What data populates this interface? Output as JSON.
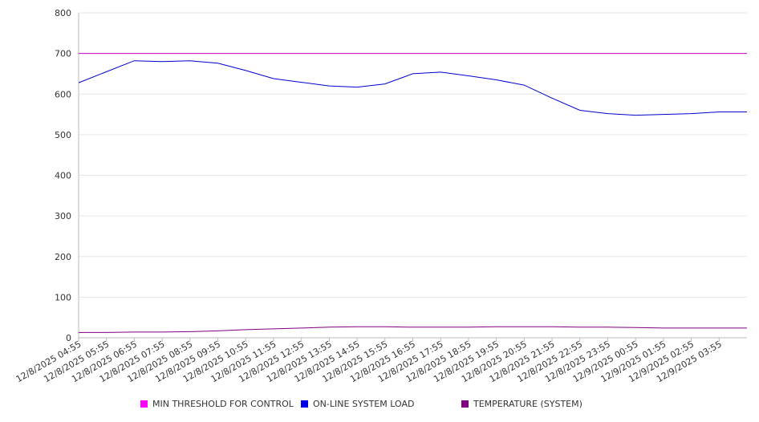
{
  "chart_data": {
    "type": "line",
    "x": [
      "12/8/2025 04:55",
      "12/8/2025 05:55",
      "12/8/2025 06:55",
      "12/8/2025 07:55",
      "12/8/2025 08:55",
      "12/8/2025 09:55",
      "12/8/2025 10:55",
      "12/8/2025 11:55",
      "12/8/2025 12:55",
      "12/8/2025 13:55",
      "12/8/2025 14:55",
      "12/8/2025 15:55",
      "12/8/2025 16:55",
      "12/8/2025 17:55",
      "12/8/2025 18:55",
      "12/8/2025 19:55",
      "12/8/2025 20:55",
      "12/8/2025 21:55",
      "12/8/2025 22:55",
      "12/8/2025 23:55",
      "12/9/2025 00:55",
      "12/9/2025 01:55",
      "12/9/2025 02:55",
      "12/9/2025 03:55"
    ],
    "x_tick_labels": [
      "12/8/2025 04:55",
      "12/8/2025 05:55",
      "12/8/2025 06:55",
      "12/8/2025 07:55",
      "12/8/2025 08:55",
      "12/8/2025 09:55",
      "12/8/2025 10:55",
      "12/8/2025 11:55",
      "12/8/2025 12:55",
      "12/8/2025 13:55",
      "12/8/2025 14:55",
      "12/8/2025 15:55",
      "12/8/2025 16:55",
      "12/8/2025 17:55",
      "12/8/2025 18:55",
      "12/8/2025 19:55",
      "12/8/2025 20:55",
      "12/8/2025 21:55",
      "12/8/2025 22:55",
      "12/8/2025 23:55",
      "12/9/2025 00:55",
      "12/9/2025 01:55",
      "12/9/2025 02:55",
      "12/9/2025 03:55"
    ],
    "y_tick_labels": [
      "0",
      "100",
      "200",
      "300",
      "400",
      "500",
      "600",
      "700",
      "800"
    ],
    "ylim": [
      0,
      800
    ],
    "y_ticks": [
      0,
      100,
      200,
      300,
      400,
      500,
      600,
      700,
      800
    ],
    "grid": true,
    "legend_placement": "bottom",
    "series": [
      {
        "name": "MIN THRESHOLD FOR CONTROL",
        "color": "#cc00cc",
        "values": [
          700,
          700,
          700,
          700,
          700,
          700,
          700,
          700,
          700,
          700,
          700,
          700,
          700,
          700,
          700,
          700,
          700,
          700,
          700,
          700,
          700,
          700,
          700,
          700
        ]
      },
      {
        "name": "ON-LINE SYSTEM LOAD",
        "color": "#0000cc",
        "values": [
          628,
          655,
          682,
          680,
          682,
          676,
          658,
          638,
          629,
          620,
          617,
          625,
          650,
          654,
          645,
          635,
          622,
          590,
          560,
          552,
          548,
          550,
          552,
          556
        ]
      },
      {
        "name": "TEMPERATURE (SYSTEM)",
        "color": "#800080",
        "values": [
          13,
          13,
          14,
          14,
          15,
          17,
          20,
          22,
          24,
          26,
          27,
          27,
          26,
          26,
          26,
          27,
          27,
          27,
          26,
          26,
          25,
          24,
          24,
          24
        ]
      }
    ],
    "colors": {
      "axis": "#bbbbbb",
      "grid": "#e6e6e6",
      "tick_text": "#333333"
    }
  }
}
